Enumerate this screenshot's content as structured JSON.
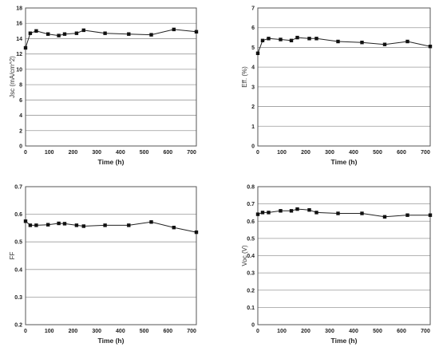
{
  "chart_data": [
    {
      "type": "line",
      "xlabel": "Time (h)",
      "ylabel": "Jsc (mA/cm^2)",
      "xlim": [
        0,
        720
      ],
      "ylim": [
        0,
        18
      ],
      "x_ticks": [
        0,
        100,
        200,
        300,
        400,
        500,
        600,
        700
      ],
      "y_ticks": [
        0,
        2,
        4,
        6,
        8,
        10,
        12,
        14,
        16,
        18
      ],
      "grid": "horizontal",
      "x": [
        0,
        20,
        45,
        95,
        140,
        165,
        215,
        245,
        335,
        435,
        530,
        625,
        720
      ],
      "values": [
        12.8,
        14.7,
        15.0,
        14.6,
        14.4,
        14.6,
        14.7,
        15.1,
        14.7,
        14.6,
        14.5,
        15.2,
        14.9
      ]
    },
    {
      "type": "line",
      "xlabel": "Time (h)",
      "ylabel": "Eff. (%)",
      "xlim": [
        0,
        720
      ],
      "ylim": [
        0,
        7
      ],
      "x_ticks": [
        0,
        100,
        200,
        300,
        400,
        500,
        600,
        700
      ],
      "y_ticks": [
        0,
        1,
        2,
        3,
        4,
        5,
        6,
        7
      ],
      "grid": "horizontal",
      "x": [
        0,
        20,
        45,
        95,
        140,
        165,
        215,
        245,
        335,
        435,
        530,
        625,
        720
      ],
      "values": [
        4.7,
        5.35,
        5.45,
        5.4,
        5.35,
        5.5,
        5.45,
        5.45,
        5.3,
        5.25,
        5.15,
        5.3,
        5.05
      ]
    },
    {
      "type": "line",
      "xlabel": "Time (h)",
      "ylabel": "FF",
      "xlim": [
        0,
        720
      ],
      "ylim": [
        0.2,
        0.7
      ],
      "x_ticks": [
        0,
        100,
        200,
        300,
        400,
        500,
        600,
        700
      ],
      "y_ticks": [
        "0.2",
        "0.3",
        "0.4",
        "0.5",
        "0.6",
        "0.7"
      ],
      "grid": "horizontal",
      "x": [
        0,
        20,
        45,
        95,
        140,
        165,
        215,
        245,
        335,
        435,
        530,
        625,
        720
      ],
      "values": [
        0.575,
        0.56,
        0.56,
        0.562,
        0.567,
        0.566,
        0.56,
        0.557,
        0.56,
        0.56,
        0.572,
        0.552,
        0.535
      ]
    },
    {
      "type": "line",
      "xlabel": "Time (h)",
      "ylabel": "Voc (V)",
      "xlim": [
        0,
        720
      ],
      "ylim": [
        0,
        0.8
      ],
      "x_ticks": [
        0,
        100,
        200,
        300,
        400,
        500,
        600,
        700
      ],
      "y_ticks": [
        "0",
        "0.1",
        "0.2",
        "0.3",
        "0.4",
        "0.5",
        "0.6",
        "0.7",
        "0.8"
      ],
      "grid": "horizontal",
      "x": [
        0,
        20,
        45,
        95,
        140,
        165,
        215,
        245,
        335,
        435,
        530,
        625,
        720
      ],
      "values": [
        0.64,
        0.65,
        0.65,
        0.66,
        0.66,
        0.67,
        0.665,
        0.65,
        0.645,
        0.645,
        0.625,
        0.635,
        0.635
      ]
    }
  ]
}
